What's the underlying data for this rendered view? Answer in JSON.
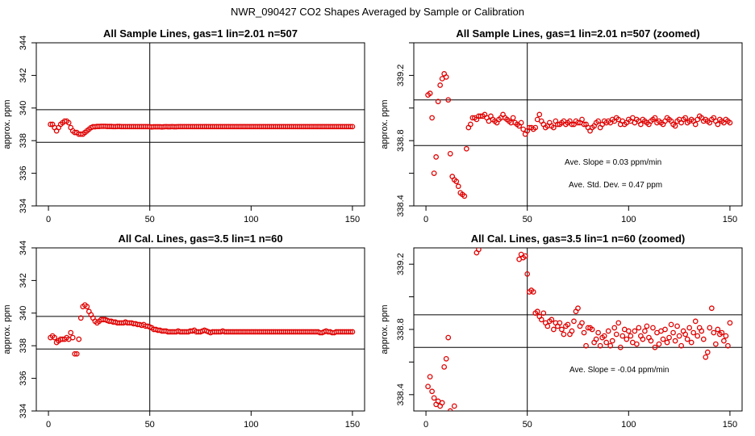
{
  "suptitle": "NWR_090427  CO2 Shapes Averaged by Sample or Calibration",
  "chart_data": [
    {
      "type": "scatter",
      "title": "All Sample Lines, gas=1 lin=2.01 n=507",
      "ylabel": "approx. ppm",
      "xlim": [
        0,
        150
      ],
      "ylim": [
        334,
        344
      ],
      "xticks": [
        0,
        50,
        100,
        150
      ],
      "yticks": [
        334,
        336,
        338,
        340,
        342,
        344
      ],
      "hlines": [
        339.9,
        337.9
      ],
      "vline": 50,
      "annotations": [],
      "x": [
        1,
        2,
        3,
        4,
        5,
        6,
        7,
        8,
        9,
        10,
        11,
        12,
        13,
        14,
        15,
        16,
        17,
        18,
        19,
        20,
        21,
        22,
        23,
        24,
        25,
        26,
        27,
        28,
        29,
        30,
        31,
        32,
        33,
        34,
        35,
        36,
        37,
        38,
        39,
        40,
        41,
        42,
        43,
        44,
        45,
        46,
        47,
        48,
        49,
        50,
        51,
        52,
        53,
        54,
        55,
        56,
        57,
        58,
        59,
        60,
        61,
        62,
        63,
        64,
        65,
        66,
        67,
        68,
        69,
        70,
        71,
        72,
        73,
        74,
        75,
        76,
        77,
        78,
        79,
        80,
        81,
        82,
        83,
        84,
        85,
        86,
        87,
        88,
        89,
        90,
        91,
        92,
        93,
        94,
        95,
        96,
        97,
        98,
        99,
        100,
        101,
        102,
        103,
        104,
        105,
        106,
        107,
        108,
        109,
        110,
        111,
        112,
        113,
        114,
        115,
        116,
        117,
        118,
        119,
        120,
        121,
        122,
        123,
        124,
        125,
        126,
        127,
        128,
        129,
        130,
        131,
        132,
        133,
        134,
        135,
        136,
        137,
        138,
        139,
        140,
        141,
        142,
        143,
        144,
        145,
        146,
        147,
        148,
        149,
        150
      ],
      "y": [
        339.0,
        339.0,
        338.8,
        338.6,
        338.8,
        339.0,
        339.1,
        339.2,
        339.2,
        339.1,
        338.8,
        338.6,
        338.5,
        338.5,
        338.4,
        338.4,
        338.4,
        338.5,
        338.6,
        338.7,
        338.8,
        338.85,
        338.85,
        338.87,
        338.87,
        338.88,
        338.88,
        338.88,
        338.87,
        338.87,
        338.87,
        338.86,
        338.86,
        338.87,
        338.87,
        338.86,
        338.86,
        338.86,
        338.86,
        338.86,
        338.86,
        338.86,
        338.86,
        338.86,
        338.86,
        338.86,
        338.86,
        338.86,
        338.86,
        338.85,
        338.84,
        338.85,
        338.85,
        338.85,
        338.85,
        338.84,
        338.85,
        338.86,
        338.85,
        338.85,
        338.86,
        338.85,
        338.85,
        338.86,
        338.86,
        338.86,
        338.86,
        338.86,
        338.86,
        338.86,
        338.86,
        338.86,
        338.86,
        338.86,
        338.86,
        338.86,
        338.86,
        338.86,
        338.86,
        338.86,
        338.86,
        338.86,
        338.86,
        338.86,
        338.86,
        338.86,
        338.86,
        338.86,
        338.86,
        338.86,
        338.86,
        338.86,
        338.86,
        338.86,
        338.86,
        338.86,
        338.86,
        338.86,
        338.86,
        338.86,
        338.86,
        338.86,
        338.86,
        338.86,
        338.86,
        338.86,
        338.86,
        338.86,
        338.86,
        338.86,
        338.86,
        338.86,
        338.86,
        338.86,
        338.86,
        338.86,
        338.86,
        338.86,
        338.86,
        338.86,
        338.86,
        338.86,
        338.86,
        338.86,
        338.86,
        338.86,
        338.86,
        338.86,
        338.86,
        338.86,
        338.86,
        338.86,
        338.86,
        338.86,
        338.86,
        338.86,
        338.86,
        338.86,
        338.86,
        338.86,
        338.86,
        338.86,
        338.86,
        338.86,
        338.86,
        338.86,
        338.86,
        338.86,
        338.86,
        338.86
      ]
    },
    {
      "type": "scatter",
      "title": "All Sample Lines, gas=1 lin=2.01 n=507 (zoomed)",
      "ylabel": "approx. ppm",
      "xlim": [
        0,
        150
      ],
      "ylim": [
        338.4,
        339.4
      ],
      "xticks": [
        0,
        50,
        100,
        150
      ],
      "yticks": [
        338.4,
        338.6,
        338.8,
        339.0,
        339.2,
        339.4
      ],
      "ytick_labels": [
        "338.4",
        "",
        "338.8",
        "",
        "339.2",
        ""
      ],
      "hlines": [
        339.05,
        338.77
      ],
      "vline": 50,
      "annotations": [
        "Ave. Slope =  0.03  ppm/min",
        "Ave. Std. Dev. =  0.47  ppm"
      ],
      "x": [
        1,
        2,
        3,
        4,
        5,
        6,
        7,
        8,
        9,
        10,
        11,
        12,
        13,
        14,
        15,
        16,
        17,
        18,
        19,
        20,
        21,
        22,
        23,
        24,
        25,
        26,
        27,
        28,
        29,
        30,
        31,
        32,
        33,
        34,
        35,
        36,
        37,
        38,
        39,
        40,
        41,
        42,
        43,
        44,
        45,
        46,
        47,
        48,
        49,
        50,
        51,
        52,
        53,
        54,
        55,
        56,
        57,
        58,
        59,
        60,
        61,
        62,
        63,
        64,
        65,
        66,
        67,
        68,
        69,
        70,
        71,
        72,
        73,
        74,
        75,
        76,
        77,
        78,
        79,
        80,
        81,
        82,
        83,
        84,
        85,
        86,
        87,
        88,
        89,
        90,
        91,
        92,
        93,
        94,
        95,
        96,
        97,
        98,
        99,
        100,
        101,
        102,
        103,
        104,
        105,
        106,
        107,
        108,
        109,
        110,
        111,
        112,
        113,
        114,
        115,
        116,
        117,
        118,
        119,
        120,
        121,
        122,
        123,
        124,
        125,
        126,
        127,
        128,
        129,
        130,
        131,
        132,
        133,
        134,
        135,
        136,
        137,
        138,
        139,
        140,
        141,
        142,
        143,
        144,
        145,
        146,
        147,
        148,
        149,
        150
      ],
      "y": [
        339.08,
        339.09,
        338.94,
        338.6,
        338.7,
        339.04,
        339.14,
        339.18,
        339.21,
        339.19,
        339.05,
        338.72,
        338.58,
        338.56,
        338.55,
        338.52,
        338.48,
        338.47,
        338.46,
        338.75,
        338.88,
        338.9,
        338.94,
        338.94,
        338.93,
        338.95,
        338.95,
        338.95,
        338.96,
        338.94,
        338.92,
        338.95,
        338.93,
        338.92,
        338.91,
        338.93,
        338.94,
        338.96,
        338.94,
        338.93,
        338.92,
        338.91,
        338.94,
        338.91,
        338.9,
        338.89,
        338.91,
        338.87,
        338.84,
        338.86,
        338.88,
        338.88,
        338.87,
        338.88,
        338.93,
        338.96,
        338.92,
        338.9,
        338.88,
        338.89,
        338.91,
        338.89,
        338.88,
        338.92,
        338.9,
        338.9,
        338.91,
        338.92,
        338.9,
        338.91,
        338.92,
        338.9,
        338.9,
        338.92,
        338.91,
        338.91,
        338.93,
        338.9,
        338.9,
        338.88,
        338.86,
        338.88,
        338.89,
        338.91,
        338.92,
        338.88,
        338.9,
        338.92,
        338.91,
        338.92,
        338.91,
        338.93,
        338.92,
        338.94,
        338.93,
        338.9,
        338.92,
        338.9,
        338.91,
        338.93,
        338.92,
        338.94,
        338.91,
        338.93,
        338.92,
        338.9,
        338.93,
        338.92,
        338.91,
        338.9,
        338.92,
        338.93,
        338.94,
        338.91,
        338.92,
        338.91,
        338.9,
        338.92,
        338.94,
        338.93,
        338.92,
        338.9,
        338.89,
        338.92,
        338.93,
        338.91,
        338.93,
        338.94,
        338.91,
        338.92,
        338.93,
        338.92,
        338.9,
        338.93,
        338.95,
        338.94,
        338.92,
        338.93,
        338.92,
        338.91,
        338.93,
        338.94,
        338.92,
        338.9,
        338.93,
        338.92,
        338.91,
        338.93,
        338.92,
        338.91
      ]
    },
    {
      "type": "scatter",
      "title": "All Cal. Lines, gas=3.5 lin=1 n=60",
      "ylabel": "approx. ppm",
      "xlim": [
        0,
        150
      ],
      "ylim": [
        334,
        344
      ],
      "xticks": [
        0,
        50,
        100,
        150
      ],
      "yticks": [
        334,
        336,
        338,
        340,
        342,
        344
      ],
      "hlines": [
        339.8,
        337.8
      ],
      "vline": 50,
      "annotations": [],
      "x": [
        1,
        2,
        3,
        4,
        5,
        6,
        7,
        8,
        9,
        10,
        11,
        12,
        13,
        14,
        15,
        16,
        17,
        18,
        19,
        20,
        21,
        22,
        23,
        24,
        25,
        26,
        27,
        28,
        29,
        30,
        31,
        32,
        33,
        34,
        35,
        36,
        37,
        38,
        39,
        40,
        41,
        42,
        43,
        44,
        45,
        46,
        47,
        48,
        49,
        50,
        51,
        52,
        53,
        54,
        55,
        56,
        57,
        58,
        59,
        60,
        61,
        62,
        63,
        64,
        65,
        66,
        67,
        68,
        69,
        70,
        71,
        72,
        73,
        74,
        75,
        76,
        77,
        78,
        79,
        80,
        81,
        82,
        83,
        84,
        85,
        86,
        87,
        88,
        89,
        90,
        91,
        92,
        93,
        94,
        95,
        96,
        97,
        98,
        99,
        100,
        101,
        102,
        103,
        104,
        105,
        106,
        107,
        108,
        109,
        110,
        111,
        112,
        113,
        114,
        115,
        116,
        117,
        118,
        119,
        120,
        121,
        122,
        123,
        124,
        125,
        126,
        127,
        128,
        129,
        130,
        131,
        132,
        133,
        134,
        135,
        136,
        137,
        138,
        139,
        140,
        141,
        142,
        143,
        144,
        145,
        146,
        147,
        148,
        149,
        150
      ],
      "y": [
        338.5,
        338.6,
        338.5,
        338.2,
        338.3,
        338.4,
        338.4,
        338.4,
        338.5,
        338.4,
        338.8,
        338.5,
        337.5,
        337.5,
        338.4,
        339.7,
        340.4,
        340.5,
        340.4,
        340.1,
        339.9,
        339.7,
        339.5,
        339.4,
        339.5,
        339.6,
        339.6,
        339.6,
        339.55,
        339.5,
        339.5,
        339.45,
        339.45,
        339.4,
        339.4,
        339.4,
        339.4,
        339.45,
        339.4,
        339.4,
        339.4,
        339.35,
        339.35,
        339.3,
        339.3,
        339.25,
        339.3,
        339.2,
        339.2,
        339.15,
        339.1,
        339.0,
        339.0,
        338.95,
        338.95,
        338.9,
        338.9,
        338.9,
        338.85,
        338.85,
        338.85,
        338.85,
        338.85,
        338.9,
        338.85,
        338.85,
        338.85,
        338.85,
        338.85,
        338.9,
        338.9,
        338.95,
        338.85,
        338.85,
        338.85,
        338.9,
        338.95,
        338.9,
        338.85,
        338.8,
        338.85,
        338.85,
        338.85,
        338.85,
        338.85,
        338.9,
        338.85,
        338.85,
        338.85,
        338.85,
        338.85,
        338.85,
        338.85,
        338.85,
        338.85,
        338.85,
        338.85,
        338.85,
        338.85,
        338.85,
        338.85,
        338.85,
        338.85,
        338.85,
        338.85,
        338.85,
        338.85,
        338.85,
        338.85,
        338.85,
        338.85,
        338.85,
        338.85,
        338.85,
        338.85,
        338.85,
        338.85,
        338.85,
        338.85,
        338.85,
        338.85,
        338.85,
        338.85,
        338.85,
        338.85,
        338.85,
        338.85,
        338.85,
        338.85,
        338.85,
        338.85,
        338.85,
        338.85,
        338.8,
        338.8,
        338.85,
        338.9,
        338.85,
        338.85,
        338.8,
        338.8,
        338.85,
        338.85,
        338.85,
        338.85,
        338.85,
        338.85,
        338.85,
        338.85,
        338.85
      ]
    },
    {
      "type": "scatter",
      "title": "All Cal. Lines, gas=3.5 lin=1 n=60 (zoomed)",
      "ylabel": "approx. ppm",
      "xlim": [
        0,
        150
      ],
      "ylim": [
        338.3,
        339.3
      ],
      "xticks": [
        0,
        50,
        100,
        150
      ],
      "yticks": [
        338.4,
        338.6,
        338.8,
        339.0,
        339.2
      ],
      "ytick_labels": [
        "338.4",
        "",
        "338.8",
        "",
        "339.2"
      ],
      "hlines": [
        338.89,
        338.69
      ],
      "vline": 50,
      "annotations": [
        "Ave. Slope =  -0.04  ppm/min"
      ],
      "x": [
        1,
        2,
        3,
        4,
        5,
        6,
        7,
        8,
        9,
        10,
        11,
        12,
        14,
        25,
        26,
        46,
        47,
        48,
        49,
        50,
        51,
        52,
        53,
        54,
        55,
        56,
        57,
        58,
        59,
        60,
        61,
        62,
        63,
        64,
        65,
        66,
        67,
        68,
        69,
        70,
        71,
        72,
        73,
        74,
        75,
        76,
        77,
        78,
        79,
        80,
        81,
        82,
        83,
        84,
        85,
        86,
        87,
        88,
        89,
        90,
        91,
        92,
        93,
        94,
        95,
        96,
        97,
        98,
        99,
        100,
        101,
        102,
        103,
        104,
        105,
        106,
        107,
        108,
        109,
        110,
        111,
        112,
        113,
        114,
        115,
        116,
        117,
        118,
        119,
        120,
        121,
        122,
        123,
        124,
        125,
        126,
        127,
        128,
        129,
        130,
        131,
        132,
        133,
        134,
        135,
        136,
        137,
        138,
        139,
        140,
        141,
        142,
        143,
        144,
        145,
        146,
        147,
        148,
        149,
        150
      ],
      "y": [
        338.45,
        338.51,
        338.42,
        338.38,
        338.34,
        338.36,
        338.33,
        338.35,
        338.57,
        338.62,
        338.75,
        338.3,
        338.33,
        339.27,
        339.29,
        339.23,
        339.26,
        339.24,
        339.25,
        339.14,
        339.03,
        339.04,
        339.03,
        338.9,
        338.91,
        338.88,
        338.86,
        338.9,
        338.84,
        338.82,
        338.85,
        338.86,
        338.8,
        338.84,
        338.82,
        338.84,
        338.8,
        338.77,
        338.82,
        338.83,
        338.77,
        338.79,
        338.85,
        338.91,
        338.93,
        338.82,
        338.84,
        338.78,
        338.7,
        338.81,
        338.81,
        338.8,
        338.72,
        338.74,
        338.78,
        338.7,
        338.75,
        338.76,
        338.72,
        338.79,
        338.7,
        338.73,
        338.81,
        338.77,
        338.84,
        338.69,
        338.76,
        338.8,
        338.74,
        338.79,
        338.76,
        338.72,
        338.79,
        338.71,
        338.81,
        338.76,
        338.74,
        338.79,
        338.82,
        338.75,
        338.73,
        338.81,
        338.69,
        338.78,
        338.71,
        338.79,
        338.74,
        338.8,
        338.72,
        338.75,
        338.83,
        338.78,
        338.73,
        338.82,
        338.76,
        338.7,
        338.79,
        338.77,
        338.74,
        338.81,
        338.72,
        338.78,
        338.85,
        338.76,
        338.81,
        338.79,
        338.74,
        338.63,
        338.66,
        338.81,
        338.93,
        338.78,
        338.71,
        338.8,
        338.77,
        338.78,
        338.73,
        338.76,
        338.7,
        338.84
      ]
    }
  ]
}
